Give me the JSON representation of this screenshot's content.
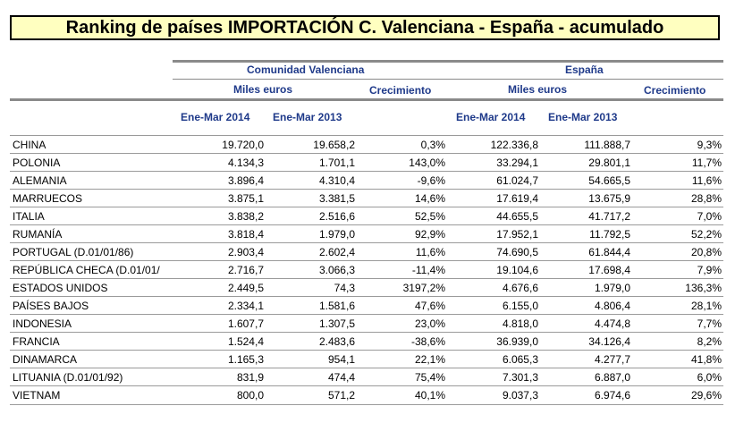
{
  "title": "Ranking de países IMPORTACIÓN C. Valenciana - España - acumulado",
  "groups": {
    "cv": "Comunidad Valenciana",
    "es": "España"
  },
  "subheaders": {
    "cv_value": "Miles euros",
    "cv_growth": "Crecimiento",
    "es_value": "Miles euros",
    "es_growth": "Crecimiento"
  },
  "periods": {
    "cv_2014": "Ene-Mar 2014",
    "cv_2013": "Ene-Mar 2013",
    "es_2014": "Ene-Mar 2014",
    "es_2013": "Ene-Mar 2013"
  },
  "rows": [
    {
      "country": "CHINA",
      "cv_2014": "19.720,0",
      "cv_2013": "19.658,2",
      "cv_growth": "0,3%",
      "es_2014": "122.336,8",
      "es_2013": "111.888,7",
      "es_growth": "9,3%"
    },
    {
      "country": "POLONIA",
      "cv_2014": "4.134,3",
      "cv_2013": "1.701,1",
      "cv_growth": "143,0%",
      "es_2014": "33.294,1",
      "es_2013": "29.801,1",
      "es_growth": "11,7%"
    },
    {
      "country": "ALEMANIA",
      "cv_2014": "3.896,4",
      "cv_2013": "4.310,4",
      "cv_growth": "-9,6%",
      "es_2014": "61.024,7",
      "es_2013": "54.665,5",
      "es_growth": "11,6%"
    },
    {
      "country": "MARRUECOS",
      "cv_2014": "3.875,1",
      "cv_2013": "3.381,5",
      "cv_growth": "14,6%",
      "es_2014": "17.619,4",
      "es_2013": "13.675,9",
      "es_growth": "28,8%"
    },
    {
      "country": "ITALIA",
      "cv_2014": "3.838,2",
      "cv_2013": "2.516,6",
      "cv_growth": "52,5%",
      "es_2014": "44.655,5",
      "es_2013": "41.717,2",
      "es_growth": "7,0%"
    },
    {
      "country": "RUMANÍA",
      "cv_2014": "3.818,4",
      "cv_2013": "1.979,0",
      "cv_growth": "92,9%",
      "es_2014": "17.952,1",
      "es_2013": "11.792,5",
      "es_growth": "52,2%"
    },
    {
      "country": "PORTUGAL (D.01/01/86)",
      "cv_2014": "2.903,4",
      "cv_2013": "2.602,4",
      "cv_growth": "11,6%",
      "es_2014": "74.690,5",
      "es_2013": "61.844,4",
      "es_growth": "20,8%"
    },
    {
      "country": "REPÚBLICA CHECA (D.01/01/",
      "cv_2014": "2.716,7",
      "cv_2013": "3.066,3",
      "cv_growth": "-11,4%",
      "es_2014": "19.104,6",
      "es_2013": "17.698,4",
      "es_growth": "7,9%"
    },
    {
      "country": "ESTADOS UNIDOS",
      "cv_2014": "2.449,5",
      "cv_2013": "74,3",
      "cv_growth": "3197,2%",
      "es_2014": "4.676,6",
      "es_2013": "1.979,0",
      "es_growth": "136,3%"
    },
    {
      "country": "PAÍSES BAJOS",
      "cv_2014": "2.334,1",
      "cv_2013": "1.581,6",
      "cv_growth": "47,6%",
      "es_2014": "6.155,0",
      "es_2013": "4.806,4",
      "es_growth": "28,1%"
    },
    {
      "country": "INDONESIA",
      "cv_2014": "1.607,7",
      "cv_2013": "1.307,5",
      "cv_growth": "23,0%",
      "es_2014": "4.818,0",
      "es_2013": "4.474,8",
      "es_growth": "7,7%"
    },
    {
      "country": "FRANCIA",
      "cv_2014": "1.524,4",
      "cv_2013": "2.483,6",
      "cv_growth": "-38,6%",
      "es_2014": "36.939,0",
      "es_2013": "34.126,4",
      "es_growth": "8,2%"
    },
    {
      "country": "DINAMARCA",
      "cv_2014": "1.165,3",
      "cv_2013": "954,1",
      "cv_growth": "22,1%",
      "es_2014": "6.065,3",
      "es_2013": "4.277,7",
      "es_growth": "41,8%"
    },
    {
      "country": "LITUANIA (D.01/01/92)",
      "cv_2014": "831,9",
      "cv_2013": "474,4",
      "cv_growth": "75,4%",
      "es_2014": "7.301,3",
      "es_2013": "6.887,0",
      "es_growth": "6,0%"
    },
    {
      "country": "VIETNAM",
      "cv_2014": "800,0",
      "cv_2013": "571,2",
      "cv_growth": "40,1%",
      "es_2014": "9.037,3",
      "es_2013": "6.974,6",
      "es_growth": "29,6%"
    }
  ]
}
